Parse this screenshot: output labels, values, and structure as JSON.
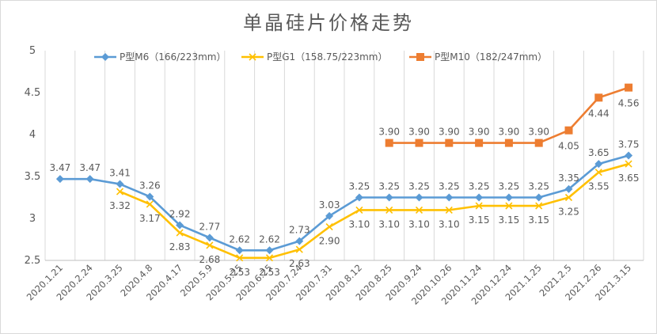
{
  "chart_data": {
    "type": "line",
    "title": "单晶硅片价格走势",
    "xlabel": "",
    "ylabel": "",
    "ylim": [
      2.5,
      5
    ],
    "yticks": [
      "2.5",
      "3",
      "3.5",
      "4",
      "4.5",
      "5"
    ],
    "grid": "vertical",
    "legend_position": "top",
    "categories": [
      "2020.1.21",
      "2020.2.24",
      "2020.3.25",
      "2020.4.8",
      "2020.4.17",
      "2020.5.9",
      "2020.5.25",
      "2020.6.25",
      "2020.7.24",
      "2020.7.31",
      "2020.8.12",
      "2020.8.25",
      "2020.9.24",
      "2020.10.26",
      "2020.11.24",
      "2020.12.24",
      "2021.1.25",
      "2021.2.5",
      "2021.2.26",
      "2021.3.15"
    ],
    "series": [
      {
        "name": "P型M6（166/223mm）",
        "color": "#5b9bd5",
        "marker": "diamond",
        "values": [
          3.47,
          3.47,
          3.41,
          3.26,
          2.92,
          2.77,
          2.62,
          2.62,
          2.73,
          3.03,
          3.25,
          3.25,
          3.25,
          3.25,
          3.25,
          3.25,
          3.25,
          3.35,
          3.65,
          3.75
        ],
        "labels": [
          "3.47",
          "3.47",
          "3.41",
          "3.26",
          "2.92",
          "2.77",
          "2.62",
          "2.62",
          "2.73",
          "3.03",
          "3.25",
          "3.25",
          "3.25",
          "3.25",
          "3.25",
          "3.25",
          "3.25",
          "3.35",
          "3.65",
          "3.75"
        ]
      },
      {
        "name": "P型G1（158.75/223mm）",
        "color": "#ffc000",
        "marker": "x",
        "values": [
          null,
          null,
          3.32,
          3.17,
          2.83,
          2.68,
          2.53,
          2.53,
          2.63,
          2.9,
          3.1,
          3.1,
          3.1,
          3.1,
          3.15,
          3.15,
          3.15,
          3.25,
          3.55,
          3.65
        ],
        "labels": [
          null,
          null,
          "3.32",
          "3.17",
          "2.83",
          "2.68",
          "2.53",
          "2.53",
          "2.63",
          "2.90",
          "3.10",
          "3.10",
          "3.10",
          "3.10",
          "3.15",
          "3.15",
          "3.15",
          "3.25",
          "3.55",
          "3.65"
        ]
      },
      {
        "name": "P型M10（182/247mm）",
        "color": "#ed7d31",
        "marker": "square",
        "values": [
          null,
          null,
          null,
          null,
          null,
          null,
          null,
          null,
          null,
          null,
          null,
          3.9,
          3.9,
          3.9,
          3.9,
          3.9,
          3.9,
          4.05,
          4.44,
          4.56
        ],
        "labels": [
          null,
          null,
          null,
          null,
          null,
          null,
          null,
          null,
          null,
          null,
          null,
          "3.90",
          "3.90",
          "3.90",
          "3.90",
          "3.90",
          "3.90",
          "4.05",
          "4.44",
          "4.56"
        ]
      }
    ]
  }
}
